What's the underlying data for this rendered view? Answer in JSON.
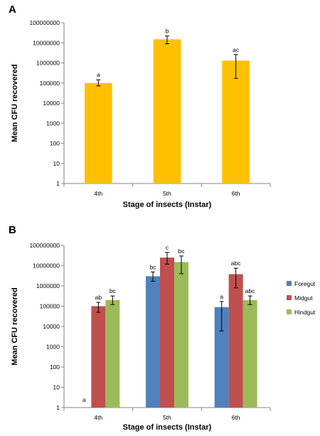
{
  "chart_data": [
    {
      "type": "bar",
      "panel_label": "A",
      "title": "",
      "xlabel": "Stage of insects (Instar)",
      "ylabel": "Mean CFU recovered",
      "yscale": "log",
      "ylim": [
        1,
        100000000
      ],
      "yticks": [
        "1",
        "10",
        "100",
        "1000",
        "10000",
        "100000",
        "1000000",
        "10000000",
        "100000000"
      ],
      "categories": [
        "4th",
        "5th",
        "6th"
      ],
      "series": [
        {
          "name": "",
          "color": "#FFC000",
          "values": [
            100000,
            15000000,
            1300000
          ],
          "err_low": [
            72000,
            9000000,
            170000
          ],
          "err_high": [
            145000,
            22000000,
            2600000
          ],
          "labels": [
            "a",
            "b",
            "ac"
          ]
        }
      ],
      "legend": "none",
      "grid": false
    },
    {
      "type": "bar",
      "panel_label": "B",
      "title": "",
      "xlabel": "Stage of insects (Instar)",
      "ylabel": "Mean CFU recovered",
      "yscale": "log",
      "ylim": [
        1,
        100000000
      ],
      "yticks": [
        "1",
        "10",
        "100",
        "1000",
        "10000",
        "100000",
        "1000000",
        "10000000",
        "100000000"
      ],
      "categories": [
        "4th",
        "5th",
        "6th"
      ],
      "series": [
        {
          "name": "Foregut",
          "color": "#4F81BD",
          "values": [
            null,
            3000000,
            90000
          ],
          "err_low": [
            null,
            1700000,
            6000
          ],
          "err_high": [
            null,
            4900000,
            170000
          ],
          "labels": [
            "a",
            "bc",
            "a"
          ]
        },
        {
          "name": "Midgut",
          "color": "#C0504D",
          "values": [
            100000,
            25000000,
            3800000
          ],
          "err_low": [
            50000,
            12000000,
            800000
          ],
          "err_high": [
            155000,
            45000000,
            7500000
          ],
          "labels": [
            "ab",
            "c",
            "abc"
          ]
        },
        {
          "name": "Hindgut",
          "color": "#9BBB59",
          "values": [
            200000,
            15000000,
            200000
          ],
          "err_low": [
            120000,
            4000000,
            120000
          ],
          "err_high": [
            320000,
            30000000,
            320000
          ],
          "labels": [
            "bc",
            "bc",
            "abc"
          ]
        }
      ],
      "legend": "right",
      "grid": false
    }
  ]
}
